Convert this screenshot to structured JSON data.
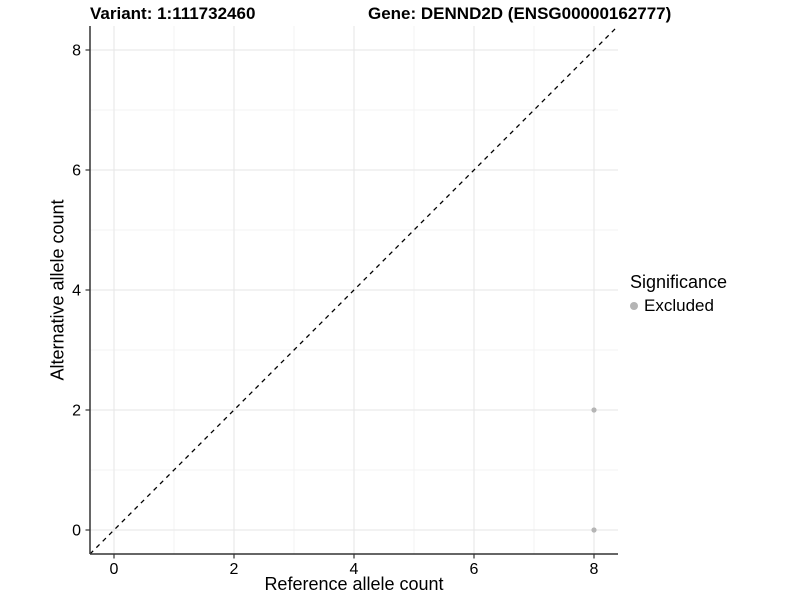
{
  "titles": {
    "variant": "Variant: 1:111732460",
    "gene": "Gene: DENND2D (ENSG00000162777)"
  },
  "chart_data": {
    "type": "scatter",
    "xlabel": "Reference allele count",
    "ylabel": "Alternative allele count",
    "xlim": [
      -0.4,
      8.4
    ],
    "ylim": [
      -0.4,
      8.4
    ],
    "x_ticks": [
      0,
      2,
      4,
      6,
      8
    ],
    "y_ticks": [
      0,
      2,
      4,
      6,
      8
    ],
    "x_minor": [
      1,
      3,
      5,
      7
    ],
    "y_minor": [
      1,
      3,
      5,
      7
    ],
    "grid": true,
    "identity_line": {
      "style": "dashed",
      "x": [
        -0.4,
        8.4
      ],
      "y": [
        -0.4,
        8.4
      ],
      "color": "#000000"
    },
    "series": [
      {
        "name": "Excluded",
        "color": "#b5b5b5",
        "points": [
          [
            8,
            0
          ],
          [
            8,
            2
          ]
        ]
      }
    ],
    "legend": {
      "title": "Significance",
      "position": "right",
      "items": [
        {
          "label": "Excluded",
          "color": "#b5b5b5"
        }
      ]
    }
  },
  "colors": {
    "background": "#ffffff",
    "grid_major": "#e6e6e6",
    "grid_minor": "#f3f3f3",
    "axis": "#333333",
    "text": "#000000"
  }
}
